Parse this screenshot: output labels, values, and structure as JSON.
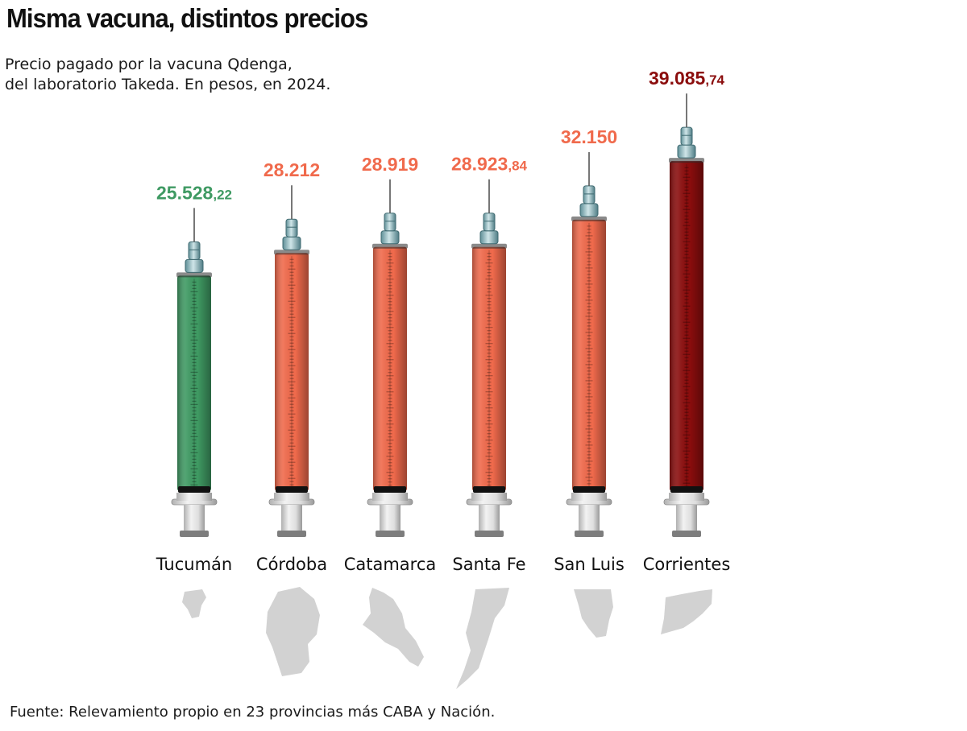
{
  "title": "Misma vacuna, distintos precios",
  "subtitle_line1": "Precio pagado por la vacuna Qdenga,",
  "subtitle_line2": "del laboratorio Takeda. En pesos, en 2024.",
  "source": "Fuente: Relevamiento propio en 23 provincias más CABA y Nación.",
  "colors": {
    "min": "#3f9a63",
    "mid": "#f06a4c",
    "max": "#8b0d0d",
    "map": "#d2d2d2"
  },
  "chart_data": {
    "type": "bar",
    "categories": [
      "Tucumán",
      "Córdoba",
      "Catamarca",
      "Santa Fe",
      "San Luis",
      "Corrientes"
    ],
    "values": [
      25528.22,
      28212,
      28919,
      28923.84,
      32150,
      39085.74
    ],
    "labels": [
      {
        "main": "25.528",
        "decimal": ",22"
      },
      {
        "main": "28.212",
        "decimal": ""
      },
      {
        "main": "28.919",
        "decimal": ""
      },
      {
        "main": "28.923",
        "decimal": ",84"
      },
      {
        "main": "32.150",
        "decimal": ""
      },
      {
        "main": "39.085",
        "decimal": ",74"
      }
    ],
    "bar_colors": [
      "min",
      "mid",
      "mid",
      "mid",
      "mid",
      "max"
    ],
    "xlabel": "",
    "ylabel": "",
    "unit": "pesos",
    "icon": "syringe-icon",
    "below_labels_icon": "province-map-icon"
  }
}
